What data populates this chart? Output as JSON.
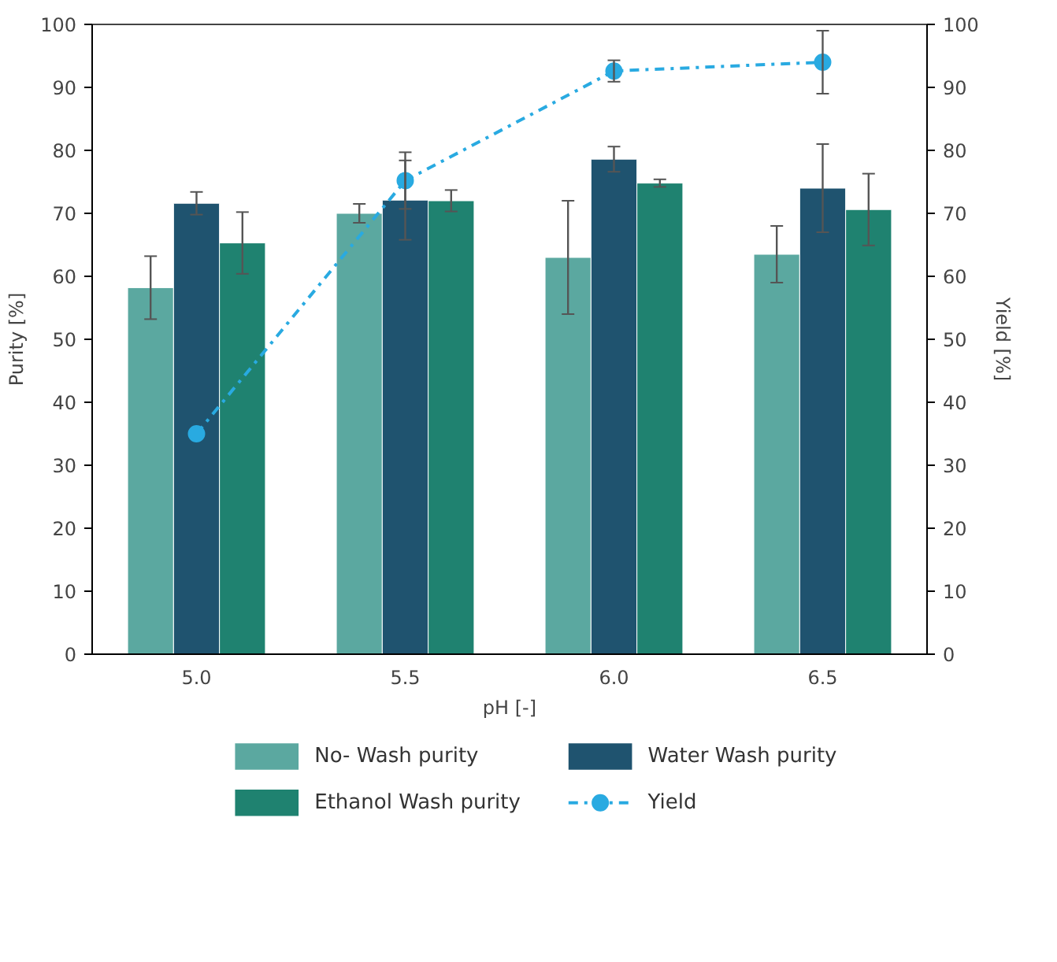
{
  "chart_data": {
    "type": "bar",
    "xlabel": "pH [-]",
    "ylabel": "Purity [%]",
    "y2label": "Yield [%]",
    "categories": [
      "5.0",
      "5.5",
      "6.0",
      "6.5"
    ],
    "series": [
      {
        "name": "No- Wash purity",
        "color": "#5ba8a0",
        "values": [
          58.2,
          70.0,
          63.0,
          63.5
        ],
        "errors": [
          5.0,
          1.5,
          9.0,
          4.5
        ]
      },
      {
        "name": "Water Wash purity",
        "color": "#1f536f",
        "values": [
          71.6,
          72.1,
          78.6,
          74.0
        ],
        "errors": [
          1.8,
          6.3,
          2.0,
          7.0
        ]
      },
      {
        "name": "Ethanol Wash purity",
        "color": "#1f8270",
        "values": [
          65.3,
          72.0,
          74.8,
          70.6
        ],
        "errors": [
          4.9,
          1.7,
          0.6,
          5.7
        ]
      },
      {
        "name": "Yield",
        "type": "line",
        "axis": "y2",
        "color": "#29aae1",
        "line_style": "dashdot",
        "marker": "circle",
        "values": [
          35.0,
          75.2,
          92.6,
          94.0
        ],
        "errors": [
          null,
          4.5,
          1.7,
          5.0
        ]
      }
    ],
    "ylim": [
      0,
      100
    ],
    "yticks": [
      0,
      10,
      20,
      30,
      40,
      50,
      60,
      70,
      80,
      90,
      100
    ],
    "y2lim": [
      0,
      100
    ],
    "y2ticks": [
      0,
      10,
      20,
      30,
      40,
      50,
      60,
      70,
      80,
      90,
      100
    ],
    "grid": false,
    "legend": "bottom"
  }
}
